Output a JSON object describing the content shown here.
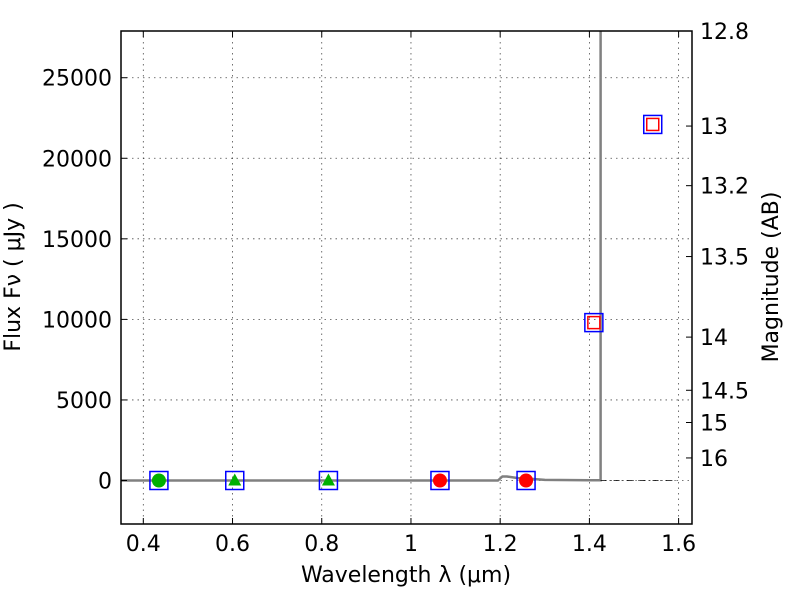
{
  "chart_data": {
    "type": "scatter",
    "xlabel": "Wavelength  λ (μm)",
    "ylabel": "Flux  Fν  ( μJy )",
    "ylabel_right": "Magnitude (AB)",
    "xlim": [
      0.35,
      1.63
    ],
    "ylim": [
      -2700,
      27900
    ],
    "x_ticks": [
      0.4,
      0.6,
      0.8,
      1.0,
      1.2,
      1.4,
      1.6
    ],
    "x_tick_labels": [
      "0.4",
      "0.6",
      "0.8",
      "1",
      "1.2",
      "1.4",
      "1.6"
    ],
    "y_ticks": [
      0,
      5000,
      10000,
      15000,
      20000,
      25000
    ],
    "y_tick_labels": [
      "0",
      "5000",
      "10000",
      "15000",
      "20000",
      "25000"
    ],
    "right_ticks": [
      {
        "label": "12.8",
        "flux": 27900
      },
      {
        "label": "13",
        "flux": 22000
      },
      {
        "label": "13.2",
        "flux": 18300
      },
      {
        "label": "13.5",
        "flux": 13900
      },
      {
        "label": "14",
        "flux": 8900
      },
      {
        "label": "14.5",
        "flux": 5600
      },
      {
        "label": "15",
        "flux": 3600
      },
      {
        "label": "16",
        "flux": 1400
      }
    ],
    "grid": true,
    "model_sed": {
      "color": "#808080",
      "points": [
        [
          0.35,
          0
        ],
        [
          1.195,
          0
        ],
        [
          1.205,
          250
        ],
        [
          1.215,
          250
        ],
        [
          1.24,
          150
        ],
        [
          1.27,
          100
        ],
        [
          1.3,
          40
        ],
        [
          1.4,
          20
        ],
        [
          1.425,
          20
        ],
        [
          1.425,
          27900
        ]
      ]
    },
    "baseline_dashed": {
      "x_start": 1.425,
      "x_end": 1.6,
      "flux": 0
    },
    "filled_circles_red": [
      {
        "x": 1.065,
        "y": 0
      },
      {
        "x": 1.258,
        "y": 0
      }
    ],
    "filled_circles_green": [
      {
        "x": 0.435,
        "y": 0
      }
    ],
    "filled_triangles_green": [
      {
        "x": 0.605,
        "y": 0
      },
      {
        "x": 0.815,
        "y": 0
      }
    ],
    "open_squares_red": [
      {
        "x": 1.41,
        "y": 9800
      },
      {
        "x": 1.542,
        "y": 22100
      }
    ],
    "open_squares_blue": [
      {
        "x": 0.435,
        "y": 0
      },
      {
        "x": 0.605,
        "y": 0
      },
      {
        "x": 0.815,
        "y": 0
      },
      {
        "x": 1.065,
        "y": 0
      },
      {
        "x": 1.258,
        "y": 0
      },
      {
        "x": 1.41,
        "y": 9800
      },
      {
        "x": 1.542,
        "y": 22100
      }
    ],
    "colors": {
      "red": "#ff0000",
      "green": "#00b000",
      "blue": "#0000ff",
      "model": "#808080"
    }
  }
}
